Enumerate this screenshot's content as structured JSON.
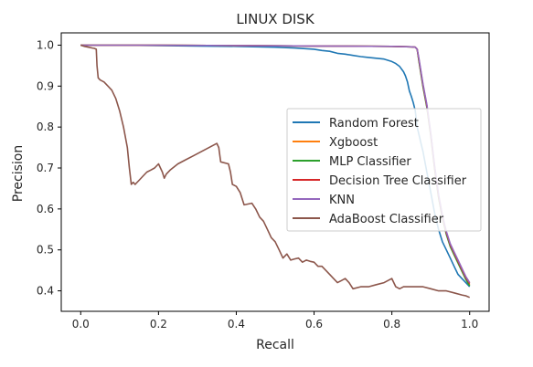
{
  "chart_data": {
    "type": "line",
    "title": "LINUX DISK",
    "xlabel": "Recall",
    "ylabel": "Precision",
    "xlim": [
      -0.05,
      1.05
    ],
    "ylim": [
      0.35,
      1.03
    ],
    "xticks": [
      0.0,
      0.2,
      0.4,
      0.6,
      0.8,
      1.0
    ],
    "yticks": [
      0.4,
      0.5,
      0.6,
      0.7,
      0.8,
      0.9,
      1.0
    ],
    "tick_labels_x": [
      "0.0",
      "0.2",
      "0.4",
      "0.6",
      "0.8",
      "1.0"
    ],
    "tick_labels_y": [
      "0.4",
      "0.5",
      "0.6",
      "0.7",
      "0.8",
      "0.9",
      "1.0"
    ],
    "grid": false,
    "legend_position": "center-right",
    "series": [
      {
        "name": "Random Forest",
        "color": "#1f77b4",
        "x": [
          0.0,
          0.1,
          0.2,
          0.3,
          0.4,
          0.5,
          0.55,
          0.6,
          0.62,
          0.64,
          0.66,
          0.68,
          0.7,
          0.72,
          0.74,
          0.76,
          0.78,
          0.8,
          0.81,
          0.82,
          0.83,
          0.835,
          0.84,
          0.845,
          0.85,
          0.855,
          0.86,
          0.865,
          0.87,
          0.875,
          0.88,
          0.89,
          0.9,
          0.91,
          0.92,
          0.93,
          0.94,
          0.95,
          0.96,
          0.97,
          0.98,
          0.99,
          1.0
        ],
        "y": [
          1.0,
          1.0,
          0.999,
          0.998,
          0.997,
          0.995,
          0.993,
          0.99,
          0.987,
          0.985,
          0.98,
          0.978,
          0.975,
          0.972,
          0.97,
          0.968,
          0.966,
          0.96,
          0.955,
          0.948,
          0.935,
          0.925,
          0.91,
          0.888,
          0.875,
          0.86,
          0.84,
          0.8,
          0.78,
          0.76,
          0.74,
          0.69,
          0.64,
          0.59,
          0.55,
          0.52,
          0.5,
          0.48,
          0.46,
          0.44,
          0.43,
          0.42,
          0.41
        ]
      },
      {
        "name": "Xgboost",
        "color": "#ff7f0e",
        "x": [
          0.0,
          0.2,
          0.4,
          0.6,
          0.8,
          0.85,
          0.86,
          0.865,
          0.87,
          0.88,
          0.89,
          0.9,
          0.91,
          0.92,
          0.93,
          0.94,
          0.95,
          0.96,
          0.97,
          0.98,
          0.99,
          1.0
        ],
        "y": [
          1.0,
          1.0,
          0.999,
          0.998,
          0.997,
          0.996,
          0.995,
          0.99,
          0.96,
          0.9,
          0.85,
          0.78,
          0.7,
          0.63,
          0.58,
          0.54,
          0.51,
          0.49,
          0.47,
          0.45,
          0.43,
          0.415
        ]
      },
      {
        "name": "MLP Classifier",
        "color": "#2ca02c",
        "x": [
          0.0,
          0.2,
          0.4,
          0.6,
          0.8,
          0.85,
          0.86,
          0.865,
          0.87,
          0.88,
          0.89,
          0.9,
          0.91,
          0.92,
          0.93,
          0.94,
          0.95,
          0.96,
          0.97,
          0.98,
          0.99,
          1.0
        ],
        "y": [
          1.0,
          1.0,
          0.999,
          0.998,
          0.997,
          0.996,
          0.995,
          0.99,
          0.958,
          0.898,
          0.848,
          0.778,
          0.698,
          0.628,
          0.578,
          0.538,
          0.508,
          0.488,
          0.468,
          0.448,
          0.428,
          0.412
        ]
      },
      {
        "name": "Decision Tree Classifier",
        "color": "#d62728",
        "x": [
          0.0,
          0.2,
          0.4,
          0.6,
          0.8,
          0.85,
          0.86,
          0.865,
          0.87,
          0.88,
          0.89,
          0.9,
          0.91,
          0.92,
          0.93,
          0.94,
          0.95,
          0.96,
          0.97,
          0.98,
          0.99,
          1.0
        ],
        "y": [
          1.0,
          1.0,
          0.999,
          0.998,
          0.997,
          0.996,
          0.995,
          0.99,
          0.962,
          0.902,
          0.852,
          0.782,
          0.702,
          0.632,
          0.582,
          0.542,
          0.512,
          0.492,
          0.472,
          0.452,
          0.432,
          0.418
        ]
      },
      {
        "name": "KNN",
        "color": "#9467bd",
        "x": [
          0.0,
          0.2,
          0.4,
          0.6,
          0.8,
          0.85,
          0.86,
          0.865,
          0.87,
          0.88,
          0.89,
          0.9,
          0.91,
          0.92,
          0.93,
          0.94,
          0.95,
          0.96,
          0.97,
          0.98,
          0.99,
          1.0
        ],
        "y": [
          1.0,
          1.0,
          0.999,
          0.998,
          0.997,
          0.996,
          0.995,
          0.99,
          0.965,
          0.905,
          0.855,
          0.785,
          0.705,
          0.635,
          0.585,
          0.545,
          0.515,
          0.495,
          0.475,
          0.455,
          0.435,
          0.42
        ]
      },
      {
        "name": "AdaBoost Classifier",
        "color": "#8c564b",
        "x": [
          0.0,
          0.01,
          0.02,
          0.03,
          0.035,
          0.04,
          0.042,
          0.045,
          0.05,
          0.06,
          0.07,
          0.08,
          0.09,
          0.1,
          0.11,
          0.12,
          0.125,
          0.13,
          0.135,
          0.14,
          0.15,
          0.16,
          0.17,
          0.18,
          0.19,
          0.2,
          0.21,
          0.215,
          0.22,
          0.23,
          0.25,
          0.27,
          0.29,
          0.31,
          0.33,
          0.35,
          0.355,
          0.36,
          0.38,
          0.385,
          0.39,
          0.4,
          0.41,
          0.42,
          0.43,
          0.44,
          0.45,
          0.46,
          0.47,
          0.48,
          0.49,
          0.5,
          0.51,
          0.52,
          0.53,
          0.54,
          0.55,
          0.56,
          0.57,
          0.58,
          0.59,
          0.6,
          0.61,
          0.62,
          0.63,
          0.64,
          0.65,
          0.66,
          0.67,
          0.68,
          0.69,
          0.7,
          0.72,
          0.74,
          0.76,
          0.78,
          0.8,
          0.81,
          0.82,
          0.83,
          0.84,
          0.86,
          0.88,
          0.9,
          0.92,
          0.94,
          0.96,
          0.98,
          0.99,
          1.0
        ],
        "y": [
          1.0,
          0.997,
          0.995,
          0.993,
          0.992,
          0.99,
          0.95,
          0.92,
          0.915,
          0.91,
          0.9,
          0.89,
          0.87,
          0.84,
          0.8,
          0.75,
          0.7,
          0.66,
          0.665,
          0.66,
          0.67,
          0.68,
          0.69,
          0.695,
          0.7,
          0.71,
          0.69,
          0.675,
          0.685,
          0.695,
          0.71,
          0.72,
          0.73,
          0.74,
          0.75,
          0.76,
          0.75,
          0.715,
          0.71,
          0.69,
          0.66,
          0.655,
          0.64,
          0.61,
          0.612,
          0.614,
          0.6,
          0.58,
          0.57,
          0.55,
          0.53,
          0.52,
          0.5,
          0.48,
          0.49,
          0.475,
          0.478,
          0.48,
          0.47,
          0.475,
          0.472,
          0.47,
          0.46,
          0.46,
          0.45,
          0.44,
          0.43,
          0.42,
          0.425,
          0.43,
          0.42,
          0.405,
          0.41,
          0.41,
          0.415,
          0.42,
          0.43,
          0.41,
          0.405,
          0.41,
          0.41,
          0.41,
          0.41,
          0.405,
          0.4,
          0.4,
          0.395,
          0.39,
          0.388,
          0.384
        ]
      }
    ]
  }
}
